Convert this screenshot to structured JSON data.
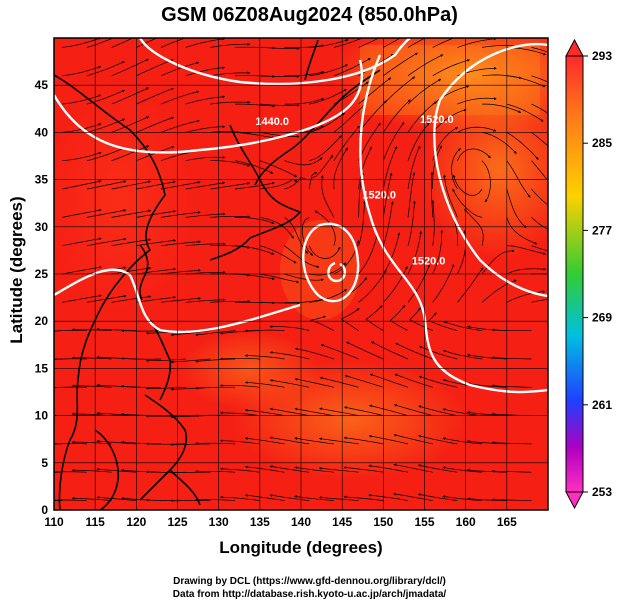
{
  "title": "GSM 06Z08Aug2024 (850.0hPa)",
  "axes": {
    "xlabel": "Longitude (degrees)",
    "ylabel": "Latitude  (degrees)",
    "x_ticks": [
      110,
      115,
      120,
      125,
      130,
      135,
      140,
      145,
      150,
      155,
      160,
      165
    ],
    "y_ticks": [
      0,
      5,
      10,
      15,
      20,
      25,
      30,
      35,
      40,
      45
    ],
    "xlim": [
      110,
      170
    ],
    "ylim": [
      0,
      50
    ]
  },
  "colorbar": {
    "ticks": [
      "293",
      "285",
      "277",
      "269",
      "261",
      "253"
    ],
    "colors": [
      "#ff2a2a",
      "#ff7a1a",
      "#ffd000",
      "#33cc33",
      "#00c0e0",
      "#2040ff",
      "#b000c0",
      "#ff30c0"
    ]
  },
  "contour_labels": [
    {
      "text": "1440.0",
      "lon": 136.5,
      "lat": 40.8
    },
    {
      "text": "1520.0",
      "lon": 149.5,
      "lat": 33.0
    },
    {
      "text": "1520.0",
      "lon": 155.5,
      "lat": 26.0
    },
    {
      "text": "1520.0",
      "lon": 156.5,
      "lat": 41.0
    }
  ],
  "credits": [
    "Drawing by DCL (https://www.gfd-dennou.org/library/dcl/)",
    "Data from http://database.rish.kyoto-u.ac.jp/arch/jmadata/"
  ]
}
